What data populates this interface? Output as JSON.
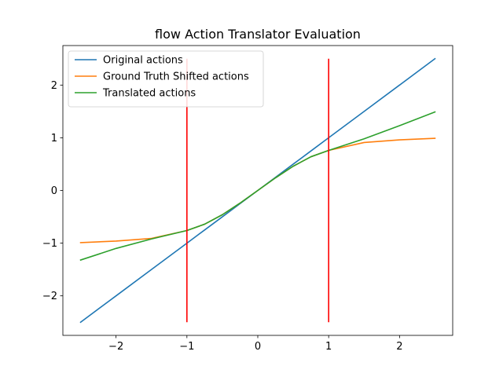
{
  "chart_data": {
    "type": "line",
    "title": "flow Action Translator Evaluation",
    "xlabel": "",
    "ylabel": "",
    "xlim": [
      -2.75,
      2.75
    ],
    "ylim": [
      -2.75,
      2.75
    ],
    "x_ticks": [
      -2,
      -1,
      0,
      1,
      2
    ],
    "y_ticks": [
      -2,
      -1,
      0,
      1,
      2
    ],
    "x_tick_labels": [
      "−2",
      "−1",
      "0",
      "1",
      "2"
    ],
    "y_tick_labels": [
      "−2",
      "−1",
      "0",
      "1",
      "2"
    ],
    "grid": false,
    "legend_position": "top-left",
    "x": [
      -2.5,
      -2.0,
      -1.5,
      -1.0,
      -0.75,
      -0.5,
      -0.25,
      0.0,
      0.25,
      0.5,
      0.75,
      1.0,
      1.5,
      2.0,
      2.5
    ],
    "series": [
      {
        "name": "Original actions",
        "color": "#1f77b4",
        "values": [
          -2.5,
          -2.0,
          -1.5,
          -1.0,
          -0.75,
          -0.5,
          -0.25,
          0.0,
          0.25,
          0.5,
          0.75,
          1.0,
          1.5,
          2.0,
          2.5
        ]
      },
      {
        "name": "Ground Truth Shifted actions",
        "color": "#ff7f0e",
        "values": [
          -0.99,
          -0.96,
          -0.91,
          -0.76,
          -0.64,
          -0.46,
          -0.24,
          0.0,
          0.24,
          0.46,
          0.64,
          0.76,
          0.91,
          0.96,
          0.99
        ]
      },
      {
        "name": "Translated actions",
        "color": "#2ca02c",
        "values": [
          -1.32,
          -1.1,
          -0.92,
          -0.76,
          -0.64,
          -0.46,
          -0.24,
          0.0,
          0.24,
          0.46,
          0.64,
          0.76,
          0.98,
          1.23,
          1.49
        ]
      }
    ],
    "vertical_lines": [
      {
        "x": -1,
        "y_range": [
          -2.5,
          2.5
        ],
        "color": "#ff0000"
      },
      {
        "x": 1,
        "y_range": [
          -2.5,
          2.5
        ],
        "color": "#ff0000"
      }
    ]
  }
}
